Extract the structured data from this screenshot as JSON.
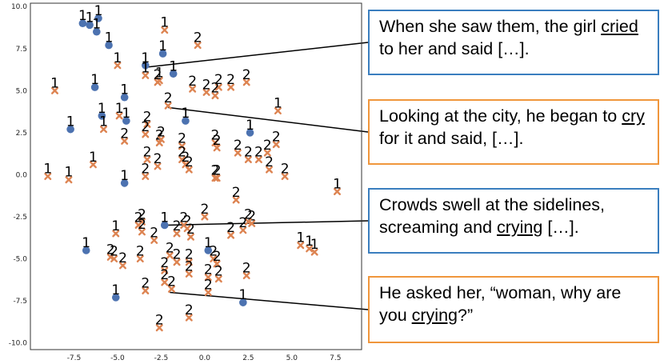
{
  "chart_data": {
    "type": "scatter",
    "title": "",
    "xlabel": "",
    "ylabel": "",
    "xlim": [
      -10,
      9
    ],
    "ylim": [
      -10.4,
      10.2
    ],
    "xticks": [
      "-7.5",
      "-5.0",
      "-2.5",
      "0.0",
      "2.5",
      "5.0",
      "7.5"
    ],
    "xtick_values": [
      -7.5,
      -5.0,
      -2.5,
      0.0,
      2.5,
      5.0,
      7.5
    ],
    "yticks": [
      "10.0",
      "7.5",
      "5.0",
      "2.5",
      "0.0",
      "-2.5",
      "-5.0",
      "-7.5",
      "-10.0"
    ],
    "ytick_values": [
      10.0,
      7.5,
      5.0,
      2.5,
      0.0,
      -2.5,
      -5.0,
      -7.5,
      -10.0
    ],
    "grid": false,
    "colors": {
      "blue": "#4c72b0",
      "orange": "#dd8452"
    },
    "series": [
      {
        "marker": "circle",
        "color": "#4c72b0",
        "label": "1",
        "points": [
          [
            -7.0,
            9.0
          ],
          [
            -6.6,
            8.9
          ],
          [
            -6.1,
            9.3
          ],
          [
            -6.2,
            8.5
          ],
          [
            -5.5,
            7.7
          ],
          [
            -3.4,
            6.5
          ],
          [
            -2.4,
            7.2
          ],
          [
            -1.8,
            6.0
          ],
          [
            -6.3,
            5.2
          ],
          [
            -4.6,
            4.6
          ],
          [
            -5.9,
            3.5
          ],
          [
            -4.5,
            3.2
          ],
          [
            -1.1,
            3.2
          ],
          [
            -7.7,
            2.7
          ],
          [
            2.6,
            2.5
          ],
          [
            -4.6,
            -0.5
          ],
          [
            -6.8,
            -4.5
          ],
          [
            0.2,
            -4.5
          ],
          [
            -2.3,
            -3.0
          ],
          [
            -5.1,
            -7.3
          ],
          [
            2.2,
            -7.6
          ]
        ]
      },
      {
        "marker": "x",
        "color": "#dd8452",
        "label": "1",
        "points": [
          [
            -2.3,
            8.6
          ],
          [
            -5.0,
            6.5
          ],
          [
            -3.4,
            5.9
          ],
          [
            -2.6,
            5.6
          ],
          [
            -8.6,
            5.0
          ],
          [
            -4.9,
            3.5
          ],
          [
            -5.8,
            2.7
          ],
          [
            -9.0,
            -0.1
          ],
          [
            -7.8,
            -0.3
          ],
          [
            -6.4,
            0.6
          ],
          [
            4.2,
            3.8
          ],
          [
            7.6,
            -1.0
          ],
          [
            6.0,
            -4.4
          ],
          [
            5.5,
            -4.2
          ],
          [
            6.3,
            -4.6
          ],
          [
            -5.1,
            -3.5
          ]
        ]
      },
      {
        "marker": "x",
        "color": "#dd8452",
        "label": "2",
        "points": [
          [
            -0.4,
            7.7
          ],
          [
            -2.7,
            5.5
          ],
          [
            -0.7,
            5.1
          ],
          [
            0.1,
            4.9
          ],
          [
            0.8,
            5.2
          ],
          [
            0.6,
            4.7
          ],
          [
            1.5,
            5.2
          ],
          [
            2.4,
            5.5
          ],
          [
            -2.1,
            4.1
          ],
          [
            -3.3,
            3.0
          ],
          [
            -4.6,
            2.0
          ],
          [
            -3.4,
            2.4
          ],
          [
            -2.6,
            1.9
          ],
          [
            -2.5,
            2.1
          ],
          [
            -1.3,
            1.7
          ],
          [
            0.6,
            1.9
          ],
          [
            0.7,
            1.6
          ],
          [
            1.9,
            1.3
          ],
          [
            2.5,
            0.9
          ],
          [
            3.1,
            0.9
          ],
          [
            3.6,
            1.3
          ],
          [
            4.1,
            1.8
          ],
          [
            -3.3,
            0.9
          ],
          [
            -2.7,
            0.5
          ],
          [
            -1.3,
            0.9
          ],
          [
            -1.1,
            0.6
          ],
          [
            -3.4,
            -0.1
          ],
          [
            0.7,
            -0.2
          ],
          [
            0.6,
            -0.2
          ],
          [
            4.6,
            -0.1
          ],
          [
            3.7,
            0.3
          ],
          [
            -0.9,
            0.3
          ],
          [
            1.8,
            -1.5
          ],
          [
            0.0,
            -2.5
          ],
          [
            -3.6,
            -2.8
          ],
          [
            -3.8,
            -3.0
          ],
          [
            -1.0,
            -3.2
          ],
          [
            -1.2,
            -3.0
          ],
          [
            2.7,
            -2.9
          ],
          [
            2.5,
            -2.8
          ],
          [
            -3.6,
            -3.4
          ],
          [
            -2.9,
            -3.9
          ],
          [
            -1.6,
            -3.5
          ],
          [
            -0.8,
            -3.7
          ],
          [
            2.2,
            -3.3
          ],
          [
            1.5,
            -3.6
          ],
          [
            -5.4,
            -4.9
          ],
          [
            -5.2,
            -5.0
          ],
          [
            -3.7,
            -5.0
          ],
          [
            -2.0,
            -4.8
          ],
          [
            -1.6,
            -5.2
          ],
          [
            -0.9,
            -5.2
          ],
          [
            0.5,
            -5.0
          ],
          [
            0.7,
            -5.3
          ],
          [
            -4.7,
            -5.4
          ],
          [
            -2.3,
            -5.7
          ],
          [
            -0.9,
            -5.9
          ],
          [
            0.2,
            -6.1
          ],
          [
            0.8,
            -6.2
          ],
          [
            2.4,
            -6.0
          ],
          [
            -3.4,
            -6.9
          ],
          [
            -2.3,
            -6.4
          ],
          [
            -1.9,
            -6.8
          ],
          [
            0.2,
            -7.0
          ],
          [
            -2.6,
            -9.1
          ],
          [
            -0.9,
            -8.5
          ]
        ]
      }
    ],
    "callouts": [
      {
        "before": "When she saw them, the girl ",
        "keyword": "cried",
        "after": " to her and said […].",
        "border_color": "#3a7ebf",
        "anchor": [
          -3.3,
          6.4
        ]
      },
      {
        "before": "Looking at the city, he began to ",
        "keyword": "cry",
        "after": " for it and said, […].",
        "border_color": "#f0963c",
        "anchor": [
          -2.1,
          4.0
        ]
      },
      {
        "before": "Crowds swell at the sidelines, screaming and ",
        "keyword": "crying",
        "after": " […].",
        "border_color": "#3a7ebf",
        "anchor": [
          -2.3,
          -3.0
        ]
      },
      {
        "before": "He asked her, “woman, why are you ",
        "keyword": "crying",
        "after": "?”",
        "border_color": "#f0963c",
        "anchor": [
          -2.0,
          -7.0
        ]
      }
    ]
  }
}
